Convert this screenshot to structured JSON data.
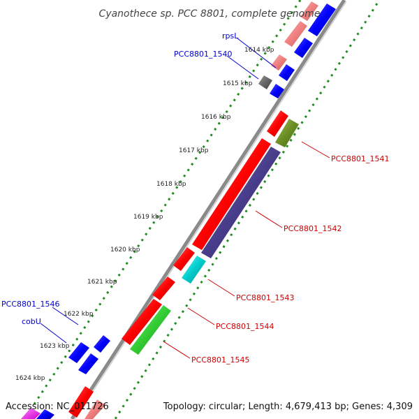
{
  "title": "Cyanothece sp. PCC 8801, complete genome",
  "footer": {
    "accession": "Accession: NC_011726",
    "topology": "Topology: circular; Length: 4,679,413 bp; Genes: 4,309"
  },
  "ticks": [
    "1614 kbp",
    "1615 kbp",
    "1616 kbp",
    "1617 kbp",
    "1618 kbp",
    "1619 kbp",
    "1620 kbp",
    "1621 kbp",
    "1622 kbp",
    "1623 kbp",
    "1624 kbp"
  ],
  "labels": {
    "left": [
      "rpsL",
      "PCC8801_1540",
      "PCC8801_1546",
      "cobU"
    ],
    "right": [
      "PCC8801_1541",
      "PCC8801_1542",
      "PCC8801_1543",
      "PCC8801_1544",
      "PCC8801_1545"
    ]
  },
  "colors": {
    "left_label": "#0000cc",
    "right_label": "#cc0000",
    "backbone": "#888888",
    "dotted_ring": "#228b22",
    "red_gene": "#ff0000",
    "blue_gene": "#0000ff",
    "purple_gene": "#483d8b",
    "cyan_gene": "#00cccc",
    "olive_gene": "#6b8e23",
    "green_gene": "#33cc33",
    "pink_gene": "#f08080",
    "gray_gene": "#666666"
  }
}
